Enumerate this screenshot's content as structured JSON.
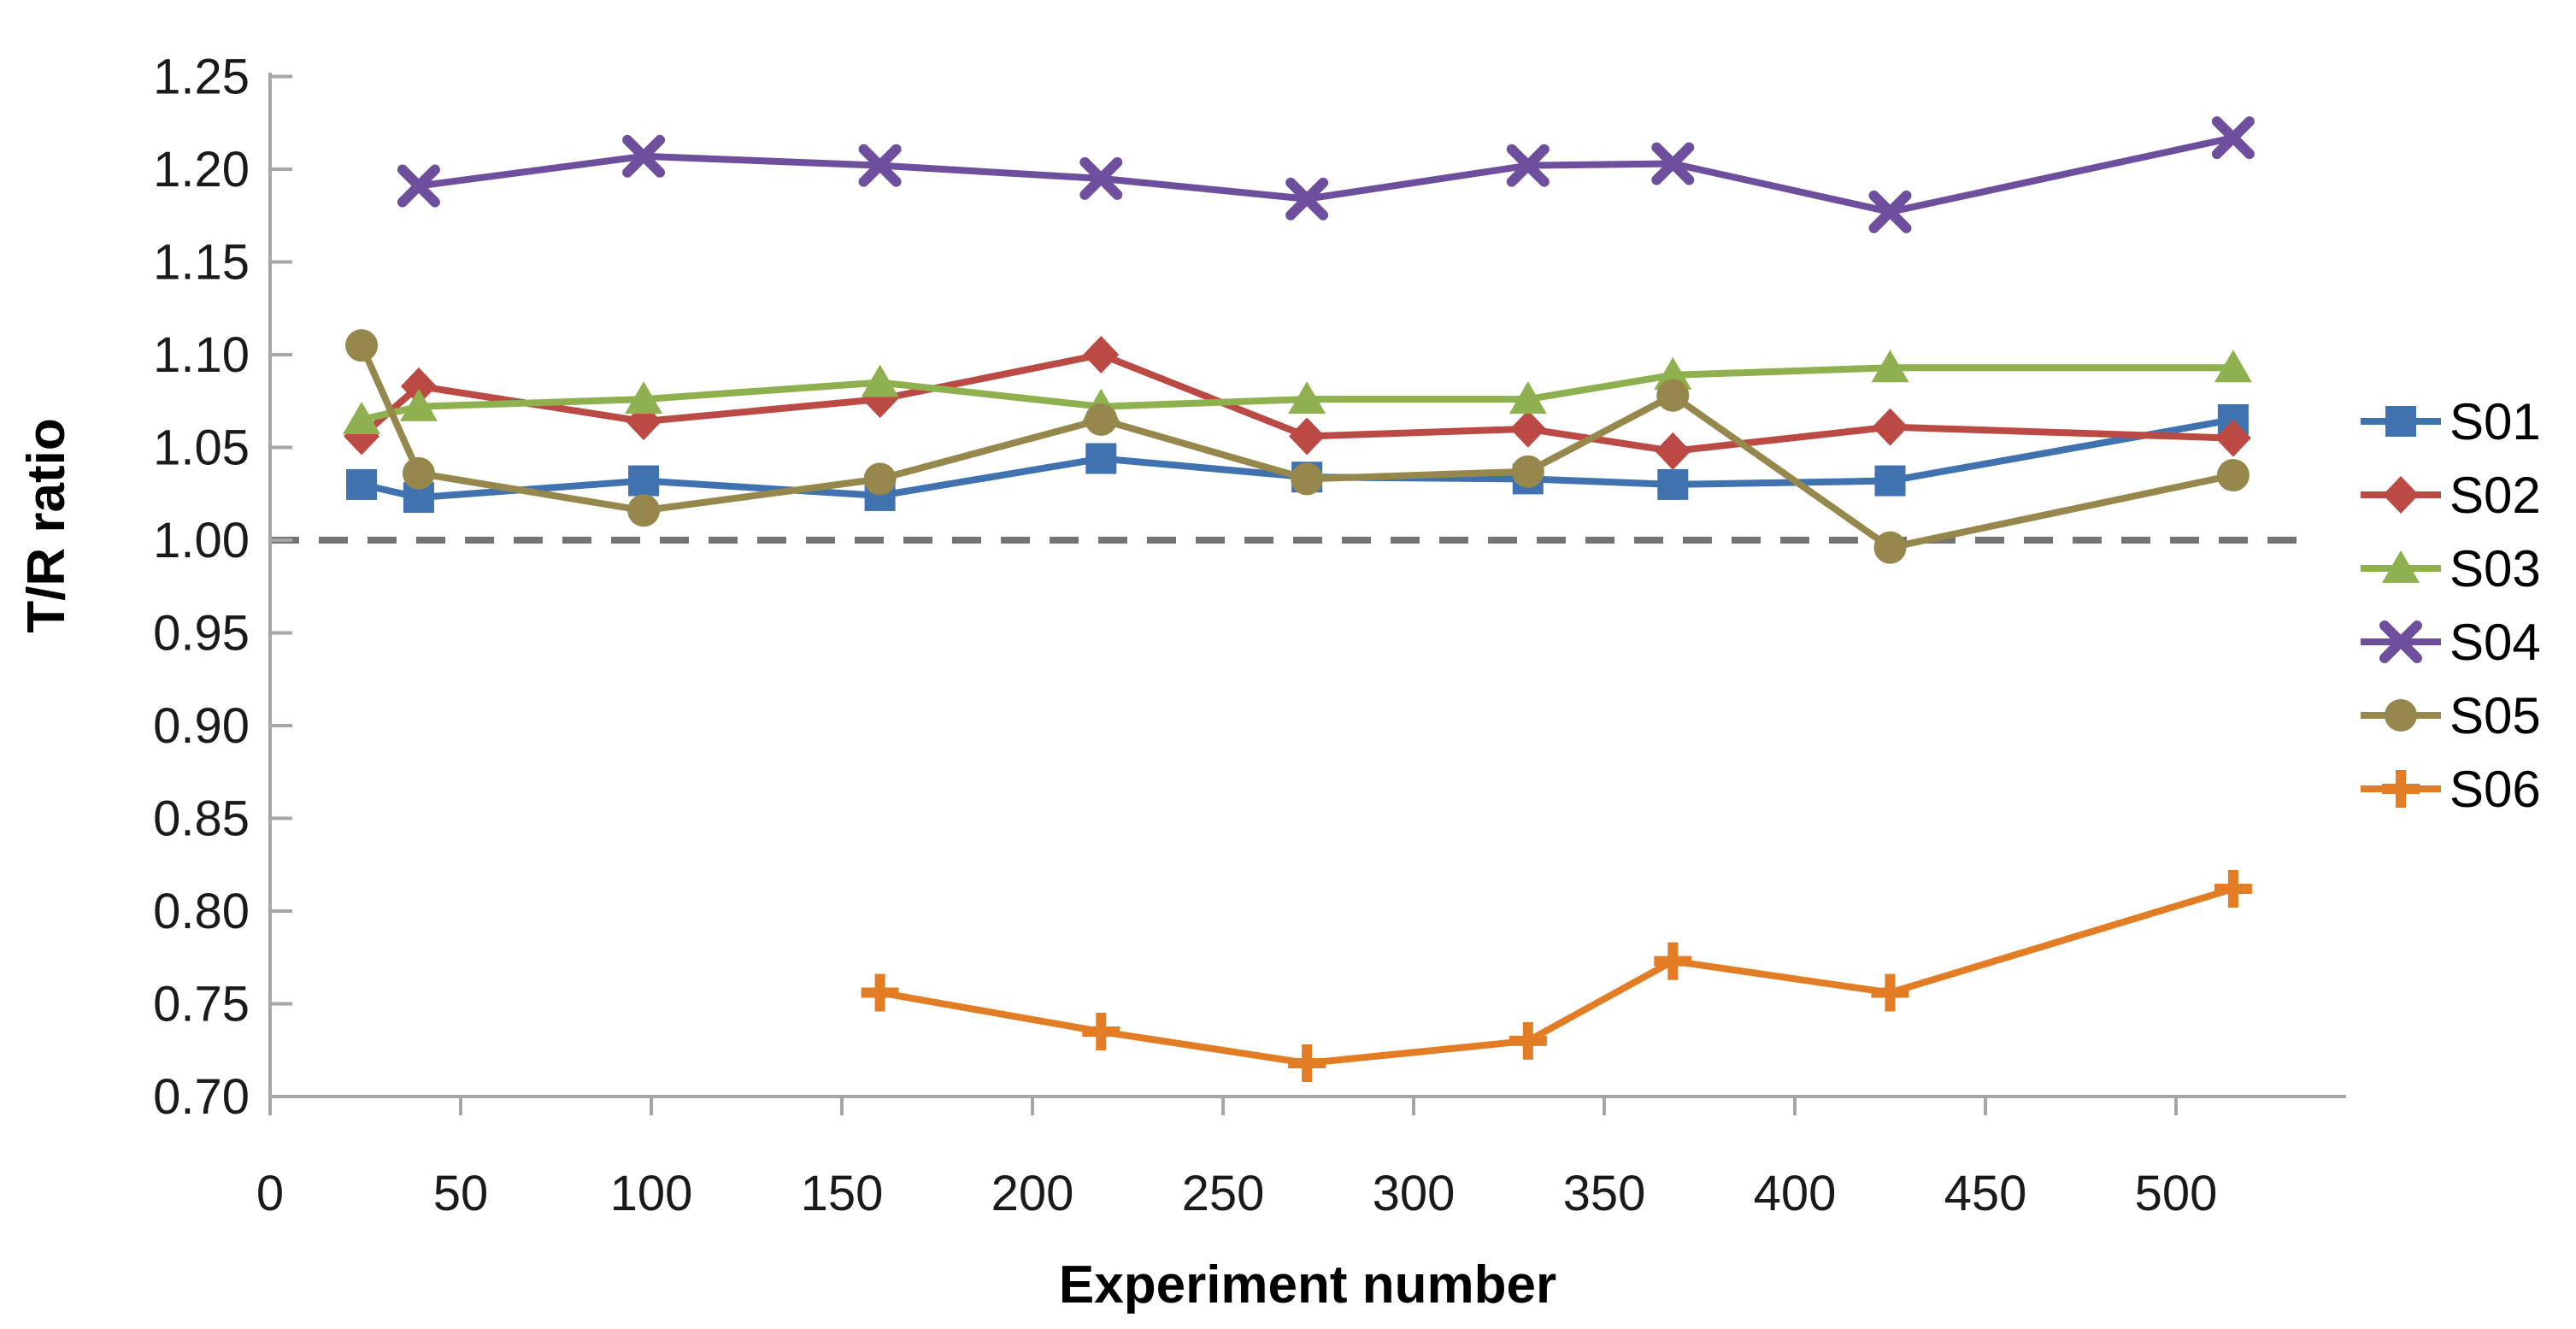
{
  "chart_data": {
    "type": "line",
    "title": "",
    "xlabel": "Experiment number",
    "ylabel": "T/R ratio",
    "xlim": [
      0,
      545
    ],
    "ylim": [
      0.7,
      1.25
    ],
    "x_ticks": [
      0,
      50,
      100,
      150,
      200,
      250,
      300,
      350,
      400,
      450,
      500
    ],
    "x_tick_labels": [
      "0",
      "50",
      "100",
      "150",
      "200",
      "250",
      "300",
      "350",
      "400",
      "450",
      "500"
    ],
    "y_ticks": [
      0.7,
      0.75,
      0.8,
      0.85,
      0.9,
      0.95,
      1.0,
      1.05,
      1.1,
      1.15,
      1.2,
      1.25
    ],
    "y_tick_labels": [
      "0.70",
      "0.75",
      "0.80",
      "0.85",
      "0.90",
      "0.95",
      "1.00",
      "1.05",
      "1.10",
      "1.15",
      "1.20",
      "1.25"
    ],
    "grid": false,
    "legend_position": "right",
    "reference_line": {
      "y": 1.0,
      "style": "dashed",
      "color": "#737373"
    },
    "axis_color": "#A6A6A6",
    "text_color": "#1a1a1a",
    "series": [
      {
        "name": "S01",
        "marker": "square",
        "color": "#3F72AE",
        "x": [
          24,
          39,
          98,
          160,
          218,
          272,
          330,
          368,
          425,
          515
        ],
        "y": [
          1.03,
          1.023,
          1.032,
          1.024,
          1.044,
          1.034,
          1.033,
          1.03,
          1.032,
          1.065
        ]
      },
      {
        "name": "S02",
        "marker": "diamond",
        "color": "#BB4A44",
        "x": [
          24,
          39,
          98,
          160,
          218,
          272,
          330,
          368,
          425,
          515
        ],
        "y": [
          1.056,
          1.083,
          1.064,
          1.076,
          1.1,
          1.056,
          1.06,
          1.048,
          1.061,
          1.055
        ]
      },
      {
        "name": "S03",
        "marker": "triangle",
        "color": "#8EB04E",
        "x": [
          24,
          39,
          98,
          160,
          218,
          272,
          330,
          368,
          425,
          515
        ],
        "y": [
          1.065,
          1.072,
          1.076,
          1.085,
          1.072,
          1.076,
          1.076,
          1.089,
          1.093,
          1.093
        ]
      },
      {
        "name": "S04",
        "marker": "xcross",
        "color": "#6E4F9E",
        "x": [
          39,
          98,
          160,
          218,
          272,
          330,
          368,
          425,
          515
        ],
        "y": [
          1.191,
          1.207,
          1.202,
          1.195,
          1.184,
          1.202,
          1.203,
          1.177,
          1.217
        ]
      },
      {
        "name": "S05",
        "marker": "circle",
        "color": "#96884D",
        "x": [
          24,
          39,
          98,
          160,
          218,
          272,
          330,
          368,
          425,
          515
        ],
        "y": [
          1.105,
          1.036,
          1.016,
          1.033,
          1.065,
          1.033,
          1.037,
          1.078,
          0.996,
          1.035
        ]
      },
      {
        "name": "S06",
        "marker": "plus",
        "color": "#E37D25",
        "x": [
          160,
          218,
          272,
          330,
          368,
          425,
          515
        ],
        "y": [
          0.756,
          0.735,
          0.718,
          0.73,
          0.773,
          0.756,
          0.812
        ]
      }
    ]
  }
}
